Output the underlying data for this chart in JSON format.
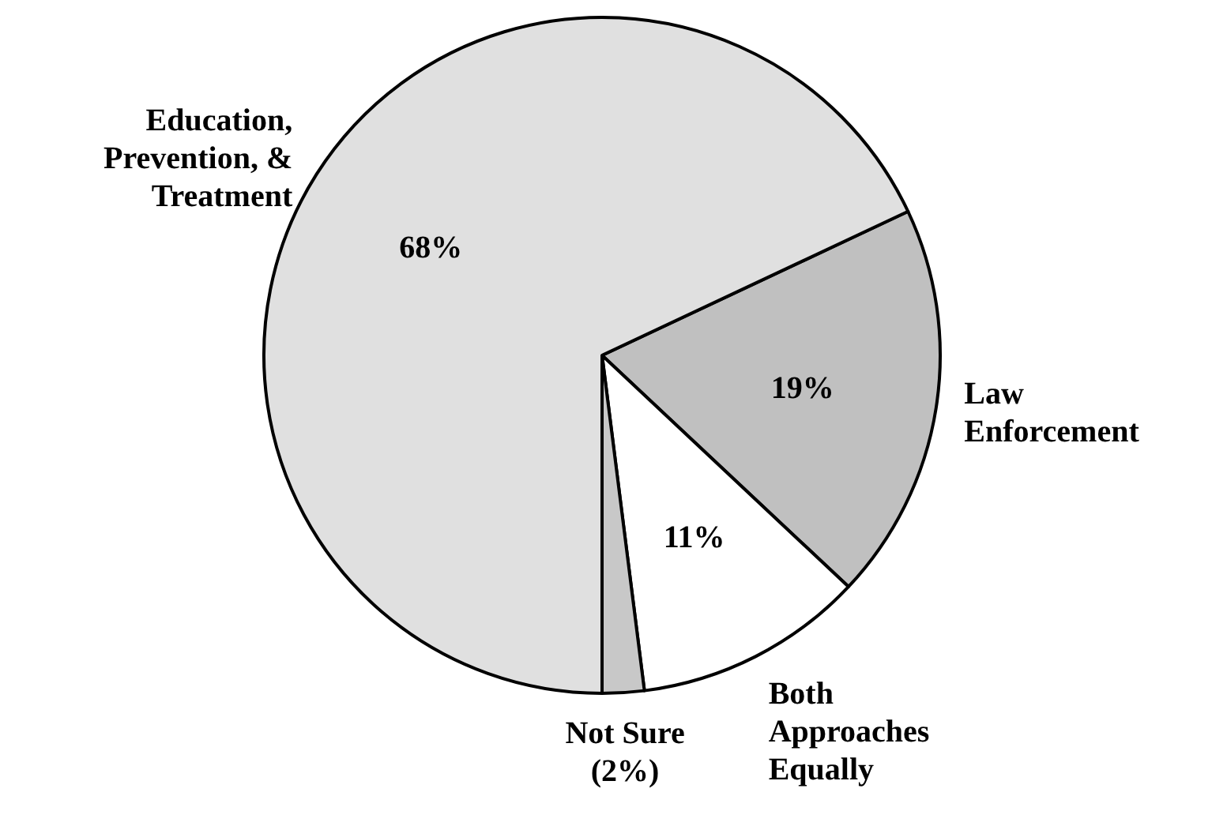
{
  "chart_data": {
    "type": "pie",
    "categories": [
      "Law\nEnforcement",
      "Both\nApproaches\nEqually",
      "Not Sure\n(2%)",
      "Education,\nPrevention, &\nTreatment"
    ],
    "values": [
      19,
      11,
      2,
      68
    ],
    "colors": [
      "#c0c0c0",
      "#ffffff",
      "#c8c8c8",
      "#e0e0e0"
    ],
    "value_labels": [
      "19%",
      "11%",
      null,
      "68%"
    ]
  }
}
